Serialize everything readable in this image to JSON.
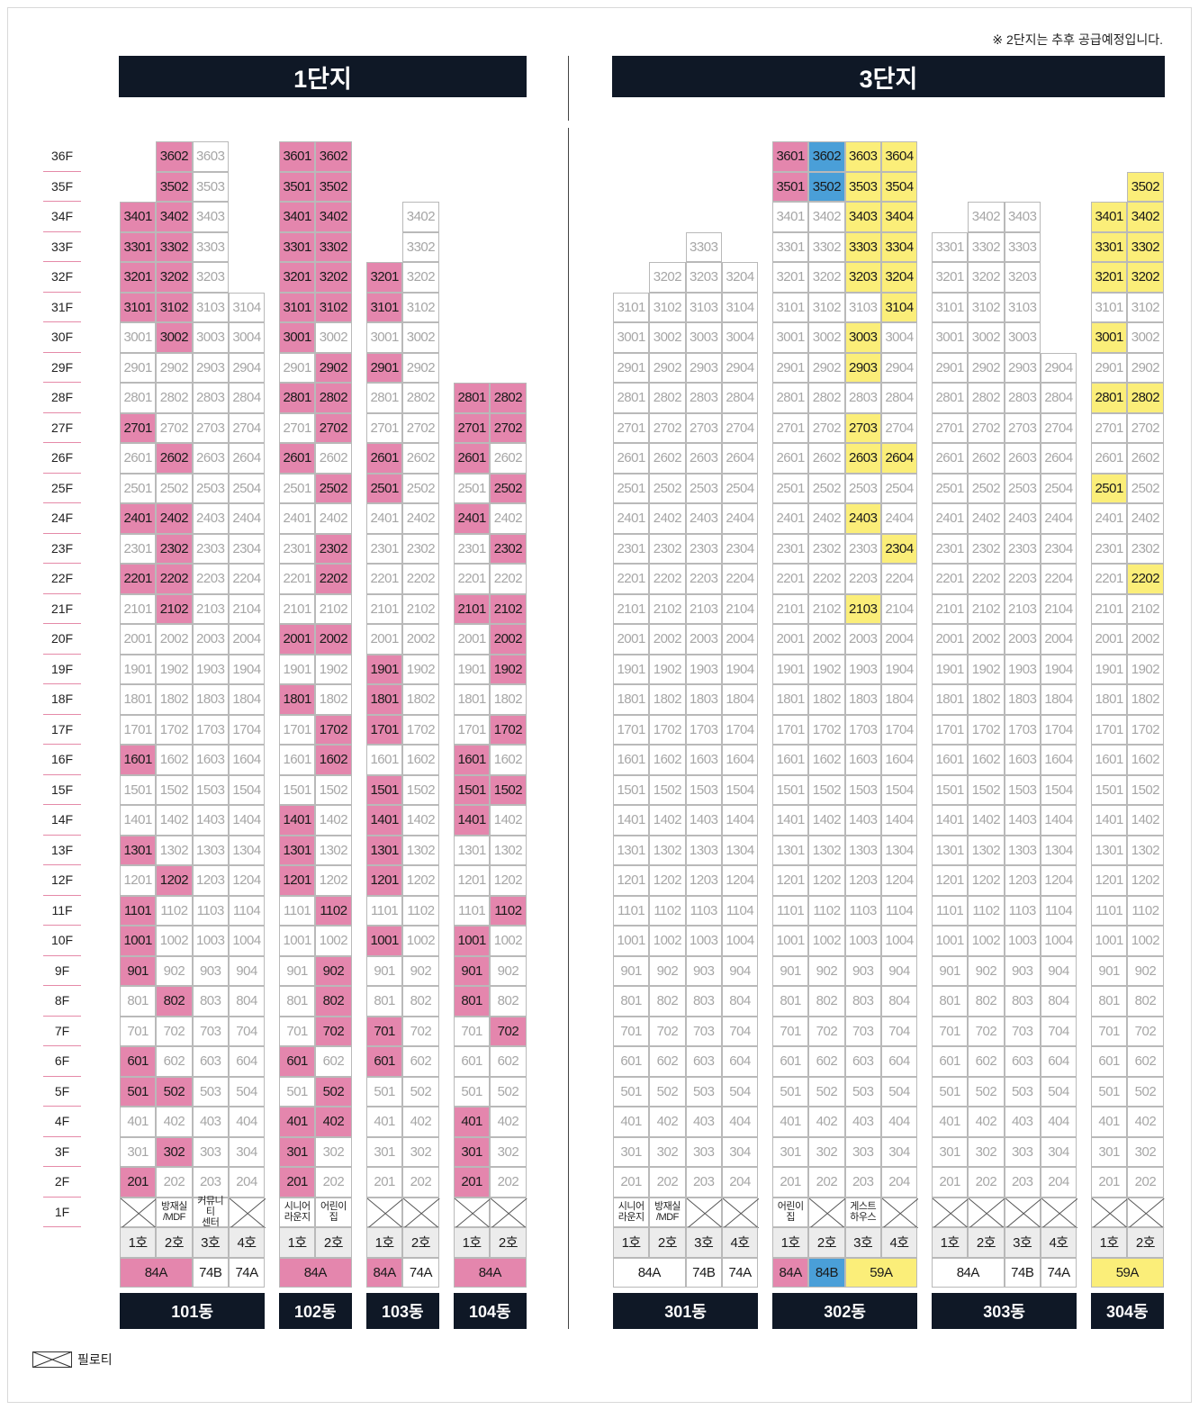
{
  "note": "※ 2단지는 추후 공급예정입니다.",
  "complexes": [
    {
      "name": "1단지"
    },
    {
      "name": "3단지"
    }
  ],
  "floors": [
    "36F",
    "35F",
    "34F",
    "33F",
    "32F",
    "31F",
    "30F",
    "29F",
    "28F",
    "27F",
    "26F",
    "25F",
    "24F",
    "23F",
    "22F",
    "21F",
    "20F",
    "19F",
    "18F",
    "17F",
    "16F",
    "15F",
    "14F",
    "13F",
    "12F",
    "11F",
    "10F",
    "9F",
    "8F",
    "7F",
    "6F",
    "5F",
    "4F",
    "3F",
    "2F",
    "1F"
  ],
  "legend": {
    "label": "필로티"
  },
  "colors": {
    "pink": "#e486ad",
    "blue": "#4a9fd8",
    "yellow": "#fbee79",
    "header": "#0f1826"
  },
  "buildings": [
    {
      "name": "101동",
      "ho_labels": [
        "1호",
        "2호",
        "3호",
        "4호"
      ],
      "top": [
        34,
        36,
        36,
        31
      ],
      "ground": [
        {
          "t": "x"
        },
        {
          "t": "f",
          "label": "방재실\n/MDF"
        },
        {
          "t": "f",
          "label": "커뮤니티\n센터"
        },
        {
          "t": "x"
        }
      ],
      "types": [
        {
          "label": "84A",
          "span": 2,
          "color": "pink"
        },
        {
          "label": "74B",
          "span": 1,
          "color": ""
        },
        {
          "label": "74A",
          "span": 1,
          "color": ""
        }
      ],
      "highlights": {
        "pink": [
          3401,
          3301,
          3201,
          3101,
          2701,
          2401,
          2201,
          1601,
          1301,
          1101,
          1001,
          901,
          601,
          501,
          201,
          3602,
          3502,
          3402,
          3302,
          3202,
          3102,
          3002,
          2602,
          2402,
          2302,
          2202,
          2102,
          1202,
          802,
          502,
          302
        ]
      }
    },
    {
      "name": "102동",
      "ho_labels": [
        "1호",
        "2호"
      ],
      "top": [
        36,
        36
      ],
      "ground": [
        {
          "t": "f",
          "label": "시니어\n라운지"
        },
        {
          "t": "f",
          "label": "어린이\n집"
        }
      ],
      "types": [
        {
          "label": "84A",
          "span": 2,
          "color": "pink"
        }
      ],
      "highlights": {
        "pink": [
          3601,
          3501,
          3401,
          3301,
          3201,
          3101,
          3001,
          2801,
          2601,
          2001,
          1801,
          1401,
          1301,
          1201,
          601,
          401,
          301,
          201,
          3602,
          3502,
          3402,
          3302,
          3202,
          3102,
          2902,
          2802,
          2702,
          2502,
          2302,
          2202,
          2002,
          1702,
          1602,
          1102,
          902,
          802,
          702,
          502,
          402
        ]
      }
    },
    {
      "name": "103동",
      "ho_labels": [
        "1호",
        "2호"
      ],
      "top": [
        32,
        34
      ],
      "ground": [
        {
          "t": "x"
        },
        {
          "t": "x"
        }
      ],
      "types": [
        {
          "label": "84A",
          "span": 1,
          "color": "pink"
        },
        {
          "label": "74A",
          "span": 1,
          "color": ""
        }
      ],
      "highlights": {
        "pink": [
          3201,
          3101,
          2901,
          2601,
          2501,
          1901,
          1801,
          1701,
          1501,
          1401,
          1301,
          1201,
          1001,
          701,
          601
        ]
      }
    },
    {
      "name": "104동",
      "ho_labels": [
        "1호",
        "2호"
      ],
      "top": [
        28,
        28
      ],
      "ground": [
        {
          "t": "x"
        },
        {
          "t": "x"
        }
      ],
      "types": [
        {
          "label": "84A",
          "span": 2,
          "color": "pink"
        }
      ],
      "highlights": {
        "pink": [
          2801,
          2701,
          2601,
          2401,
          2101,
          1601,
          1501,
          1401,
          1001,
          901,
          801,
          401,
          301,
          201,
          2802,
          2702,
          2502,
          2302,
          2102,
          2002,
          1902,
          1702,
          1502,
          1102,
          702
        ]
      }
    },
    {
      "name": "301동",
      "ho_labels": [
        "1호",
        "2호",
        "3호",
        "4호"
      ],
      "top": [
        31,
        32,
        33,
        32
      ],
      "ground": [
        {
          "t": "f",
          "label": "시니어\n라운지"
        },
        {
          "t": "f",
          "label": "방재실\n/MDF"
        },
        {
          "t": "x"
        },
        {
          "t": "x"
        }
      ],
      "types": [
        {
          "label": "84A",
          "span": 2,
          "color": ""
        },
        {
          "label": "74B",
          "span": 1,
          "color": ""
        },
        {
          "label": "74A",
          "span": 1,
          "color": ""
        }
      ],
      "highlights": {}
    },
    {
      "name": "302동",
      "ho_labels": [
        "1호",
        "2호",
        "3호",
        "4호"
      ],
      "top": [
        36,
        36,
        36,
        36
      ],
      "ground": [
        {
          "t": "f",
          "label": "어린이\n집"
        },
        {
          "t": "x"
        },
        {
          "t": "f",
          "label": "게스트\n하우스"
        },
        {
          "t": "x"
        }
      ],
      "types": [
        {
          "label": "84A",
          "span": 1,
          "color": "pink"
        },
        {
          "label": "84B",
          "span": 1,
          "color": "blue"
        },
        {
          "label": "59A",
          "span": 2,
          "color": "yellow"
        }
      ],
      "highlights": {
        "pink": [
          3601,
          3501
        ],
        "blue": [
          3602,
          3502
        ],
        "yellow": [
          3603,
          3503,
          3403,
          3303,
          3203,
          3003,
          2903,
          2703,
          2603,
          2403,
          2103,
          3604,
          3504,
          3404,
          3304,
          3204,
          3104,
          2604,
          2304
        ]
      }
    },
    {
      "name": "303동",
      "ho_labels": [
        "1호",
        "2호",
        "3호",
        "4호"
      ],
      "top": [
        33,
        34,
        34,
        29
      ],
      "ground": [
        {
          "t": "x"
        },
        {
          "t": "x"
        },
        {
          "t": "x"
        },
        {
          "t": "x"
        }
      ],
      "types": [
        {
          "label": "84A",
          "span": 2,
          "color": ""
        },
        {
          "label": "74B",
          "span": 1,
          "color": ""
        },
        {
          "label": "74A",
          "span": 1,
          "color": ""
        }
      ],
      "highlights": {}
    },
    {
      "name": "304동",
      "ho_labels": [
        "1호",
        "2호"
      ],
      "top": [
        34,
        35
      ],
      "ground": [
        {
          "t": "x"
        },
        {
          "t": "x"
        }
      ],
      "types": [
        {
          "label": "59A",
          "span": 2,
          "color": "yellow"
        }
      ],
      "highlights": {
        "yellow": [
          3401,
          3301,
          3201,
          3001,
          2801,
          2501,
          3502,
          3402,
          3302,
          3202,
          2802,
          2202
        ]
      }
    }
  ]
}
